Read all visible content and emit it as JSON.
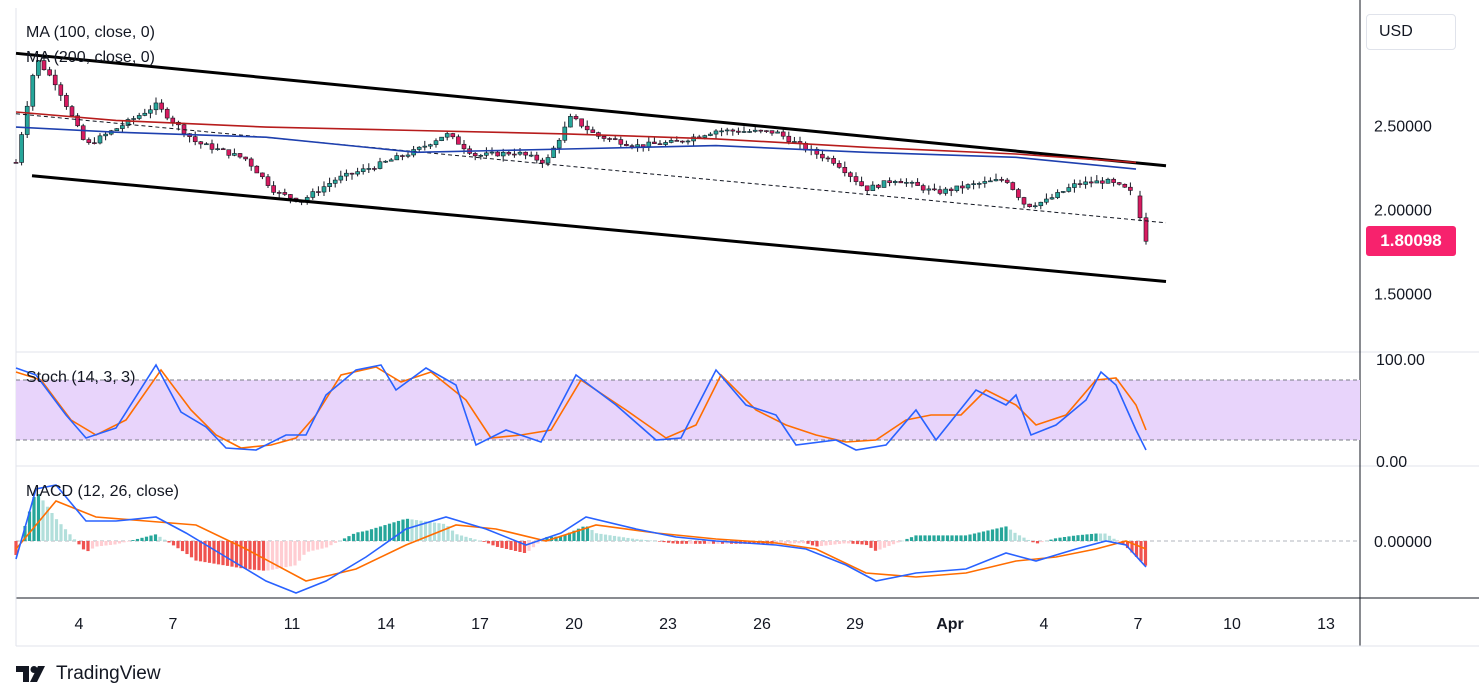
{
  "currency_label": "USD",
  "brand": {
    "name": "TradingView"
  },
  "indicators": {
    "ma100": "MA (100, close, 0)",
    "ma200": "MA (200, close, 0)",
    "stoch": "Stoch (14, 3, 3)",
    "macd": "MACD (12, 26, close)"
  },
  "colors": {
    "ma100": "#1e40af",
    "ma200": "#b71c1c",
    "candle_up": "#26a69a",
    "candle_down": "#d81b60",
    "stoch_k": "#2962ff",
    "stoch_d": "#ff6d00",
    "stoch_band": "#e8d4fb",
    "macd_line": "#2962ff",
    "signal_line": "#ff6d00",
    "price_tag": "#f7226d"
  },
  "chart_data": {
    "type": "candlestick",
    "last_price": "1.80098",
    "price_axis": {
      "ticks": [
        "2.50000",
        "2.00000",
        "1.50000"
      ],
      "range": [
        1.15,
        3.2
      ]
    },
    "time_axis": {
      "ticks": [
        "4",
        "7",
        "11",
        "14",
        "17",
        "20",
        "23",
        "26",
        "29",
        "Apr",
        "4",
        "7",
        "10",
        "13"
      ]
    },
    "stoch_axis": {
      "ticks": [
        "100.00",
        "0.00"
      ],
      "band": [
        20,
        80
      ]
    },
    "macd_axis": {
      "ticks": [
        "0.00000"
      ]
    },
    "channel": {
      "upper": [
        [
          0,
          2.93
        ],
        [
          1150,
          2.26
        ]
      ],
      "lower": [
        [
          0,
          2.2
        ],
        [
          1150,
          1.57
        ]
      ],
      "mid": [
        [
          0,
          2.57
        ],
        [
          1150,
          1.92
        ]
      ]
    },
    "series": [
      {
        "name": "MA (100, close, 0)",
        "values": [
          [
            0,
            2.49
          ],
          [
            100,
            2.46
          ],
          [
            250,
            2.43
          ],
          [
            400,
            2.34
          ],
          [
            550,
            2.36
          ],
          [
            700,
            2.38
          ],
          [
            850,
            2.34
          ],
          [
            1000,
            2.31
          ],
          [
            1120,
            2.24
          ]
        ]
      },
      {
        "name": "MA (200, close, 0)",
        "values": [
          [
            0,
            2.58
          ],
          [
            100,
            2.53
          ],
          [
            250,
            2.49
          ],
          [
            400,
            2.47
          ],
          [
            550,
            2.45
          ],
          [
            700,
            2.42
          ],
          [
            850,
            2.37
          ],
          [
            1000,
            2.33
          ],
          [
            1120,
            2.28
          ]
        ]
      }
    ],
    "close_path": [
      [
        0,
        2.28
      ],
      [
        20,
        2.9
      ],
      [
        40,
        2.75
      ],
      [
        70,
        2.38
      ],
      [
        100,
        2.48
      ],
      [
        140,
        2.62
      ],
      [
        180,
        2.4
      ],
      [
        230,
        2.3
      ],
      [
        260,
        2.1
      ],
      [
        285,
        2.05
      ],
      [
        320,
        2.18
      ],
      [
        360,
        2.26
      ],
      [
        400,
        2.35
      ],
      [
        430,
        2.45
      ],
      [
        460,
        2.32
      ],
      [
        500,
        2.34
      ],
      [
        530,
        2.28
      ],
      [
        555,
        2.55
      ],
      [
        580,
        2.44
      ],
      [
        620,
        2.38
      ],
      [
        660,
        2.4
      ],
      [
        700,
        2.47
      ],
      [
        760,
        2.46
      ],
      [
        790,
        2.36
      ],
      [
        820,
        2.28
      ],
      [
        850,
        2.12
      ],
      [
        880,
        2.18
      ],
      [
        920,
        2.1
      ],
      [
        960,
        2.15
      ],
      [
        990,
        2.18
      ],
      [
        1010,
        2.02
      ],
      [
        1030,
        2.05
      ],
      [
        1060,
        2.15
      ],
      [
        1090,
        2.17
      ],
      [
        1110,
        2.12
      ],
      [
        1120,
        2.08
      ],
      [
        1130,
        1.81
      ]
    ]
  },
  "stoch_data": {
    "k": [
      [
        0,
        92
      ],
      [
        20,
        85
      ],
      [
        50,
        45
      ],
      [
        70,
        22
      ],
      [
        100,
        32
      ],
      [
        140,
        95
      ],
      [
        165,
        48
      ],
      [
        190,
        33
      ],
      [
        210,
        12
      ],
      [
        240,
        10
      ],
      [
        270,
        25
      ],
      [
        290,
        25
      ],
      [
        310,
        65
      ],
      [
        340,
        90
      ],
      [
        365,
        95
      ],
      [
        380,
        70
      ],
      [
        410,
        92
      ],
      [
        440,
        75
      ],
      [
        460,
        15
      ],
      [
        490,
        30
      ],
      [
        525,
        18
      ],
      [
        560,
        85
      ],
      [
        600,
        55
      ],
      [
        640,
        20
      ],
      [
        665,
        22
      ],
      [
        700,
        90
      ],
      [
        730,
        55
      ],
      [
        760,
        45
      ],
      [
        780,
        15
      ],
      [
        820,
        20
      ],
      [
        840,
        10
      ],
      [
        870,
        15
      ],
      [
        900,
        50
      ],
      [
        920,
        20
      ],
      [
        960,
        70
      ],
      [
        990,
        55
      ],
      [
        1000,
        65
      ],
      [
        1015,
        25
      ],
      [
        1040,
        35
      ],
      [
        1070,
        60
      ],
      [
        1085,
        88
      ],
      [
        1100,
        75
      ],
      [
        1120,
        30
      ],
      [
        1130,
        10
      ]
    ],
    "d": [
      [
        0,
        88
      ],
      [
        25,
        80
      ],
      [
        55,
        40
      ],
      [
        80,
        25
      ],
      [
        110,
        40
      ],
      [
        145,
        90
      ],
      [
        175,
        50
      ],
      [
        200,
        25
      ],
      [
        225,
        12
      ],
      [
        255,
        15
      ],
      [
        280,
        22
      ],
      [
        300,
        45
      ],
      [
        325,
        85
      ],
      [
        360,
        93
      ],
      [
        385,
        78
      ],
      [
        415,
        88
      ],
      [
        450,
        60
      ],
      [
        475,
        22
      ],
      [
        505,
        25
      ],
      [
        535,
        30
      ],
      [
        565,
        80
      ],
      [
        610,
        50
      ],
      [
        650,
        22
      ],
      [
        680,
        35
      ],
      [
        705,
        85
      ],
      [
        740,
        50
      ],
      [
        770,
        35
      ],
      [
        800,
        25
      ],
      [
        830,
        18
      ],
      [
        860,
        20
      ],
      [
        890,
        40
      ],
      [
        915,
        45
      ],
      [
        945,
        45
      ],
      [
        970,
        70
      ],
      [
        1000,
        55
      ],
      [
        1020,
        35
      ],
      [
        1050,
        45
      ],
      [
        1080,
        80
      ],
      [
        1100,
        82
      ],
      [
        1120,
        55
      ],
      [
        1130,
        30
      ]
    ]
  },
  "macd_data": {
    "macd": [
      [
        0,
        -0.045
      ],
      [
        20,
        0.13
      ],
      [
        40,
        0.14
      ],
      [
        70,
        0.05
      ],
      [
        100,
        0.05
      ],
      [
        140,
        0.06
      ],
      [
        170,
        0.02
      ],
      [
        210,
        -0.04
      ],
      [
        250,
        -0.1
      ],
      [
        280,
        -0.13
      ],
      [
        310,
        -0.1
      ],
      [
        350,
        -0.04
      ],
      [
        390,
        0.03
      ],
      [
        430,
        0.06
      ],
      [
        470,
        0.03
      ],
      [
        510,
        -0.01
      ],
      [
        545,
        0.02
      ],
      [
        570,
        0.06
      ],
      [
        620,
        0.03
      ],
      [
        660,
        0.01
      ],
      [
        700,
        0.0
      ],
      [
        760,
        -0.01
      ],
      [
        790,
        -0.02
      ],
      [
        830,
        -0.06
      ],
      [
        860,
        -0.1
      ],
      [
        900,
        -0.08
      ],
      [
        950,
        -0.07
      ],
      [
        990,
        -0.03
      ],
      [
        1020,
        -0.05
      ],
      [
        1060,
        -0.02
      ],
      [
        1090,
        0.0
      ],
      [
        1110,
        -0.01
      ],
      [
        1130,
        -0.065
      ]
    ],
    "signal": [
      [
        0,
        -0.02
      ],
      [
        40,
        0.1
      ],
      [
        80,
        0.06
      ],
      [
        130,
        0.05
      ],
      [
        180,
        0.04
      ],
      [
        230,
        -0.02
      ],
      [
        290,
        -0.1
      ],
      [
        340,
        -0.07
      ],
      [
        390,
        -0.01
      ],
      [
        440,
        0.04
      ],
      [
        480,
        0.03
      ],
      [
        530,
        0.0
      ],
      [
        580,
        0.04
      ],
      [
        640,
        0.02
      ],
      [
        700,
        0.005
      ],
      [
        760,
        -0.005
      ],
      [
        800,
        -0.02
      ],
      [
        850,
        -0.08
      ],
      [
        900,
        -0.09
      ],
      [
        950,
        -0.08
      ],
      [
        1000,
        -0.05
      ],
      [
        1040,
        -0.04
      ],
      [
        1080,
        -0.02
      ],
      [
        1110,
        0.0
      ],
      [
        1130,
        -0.02
      ]
    ]
  }
}
